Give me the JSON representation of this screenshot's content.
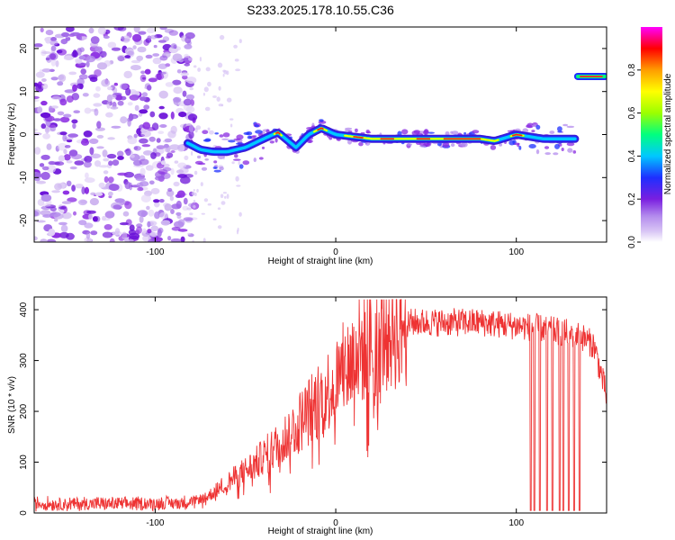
{
  "title": "S233.2025.178.10.55.C36",
  "chart_data": [
    {
      "type": "heatmap",
      "xlabel": "Height of straight line (km)",
      "ylabel": "Frequency (Hz)",
      "xlim": [
        -167,
        150
      ],
      "ylim": [
        -25,
        25
      ],
      "xticks": [
        -100,
        0,
        100
      ],
      "yticks": [
        -20,
        -10,
        0,
        10,
        20
      ],
      "colorbar": {
        "label": "Normalized spectral amplitude",
        "range": [
          0,
          1
        ],
        "ticks": [
          0.0,
          0.2,
          0.4,
          0.6,
          0.8
        ],
        "colormap": [
          "#ffffff",
          "#d9c6f5",
          "#8a2be2",
          "#1e2fff",
          "#00c8ff",
          "#00ff7f",
          "#9bff00",
          "#ffff00",
          "#ff9d00",
          "#ff0000",
          "#ff00ff"
        ]
      },
      "noise_region_x": [
        -167,
        -82
      ],
      "carrier_track": [
        {
          "x": -82,
          "f": -2
        },
        {
          "x": -75,
          "f": -3.5
        },
        {
          "x": -68,
          "f": -4
        },
        {
          "x": -60,
          "f": -4
        },
        {
          "x": -50,
          "f": -3
        },
        {
          "x": -40,
          "f": -1
        },
        {
          "x": -32,
          "f": 0.5
        },
        {
          "x": -22,
          "f": -3
        },
        {
          "x": -15,
          "f": 0
        },
        {
          "x": -8,
          "f": 1.5
        },
        {
          "x": 0,
          "f": 0
        },
        {
          "x": 20,
          "f": -1
        },
        {
          "x": 50,
          "f": -1
        },
        {
          "x": 80,
          "f": -1
        },
        {
          "x": 88,
          "f": -1.5
        },
        {
          "x": 100,
          "f": 0
        },
        {
          "x": 115,
          "f": -1
        },
        {
          "x": 133,
          "f": -1
        }
      ],
      "side_track": {
        "x": [
          134,
          149
        ],
        "f": 13.5
      }
    },
    {
      "type": "line",
      "xlabel": "Height of straight line (km)",
      "ylabel": "SNR (10 * v/v)",
      "xlim": [
        -167,
        150
      ],
      "ylim": [
        0,
        425
      ],
      "xticks": [
        -100,
        0,
        100
      ],
      "yticks": [
        0,
        100,
        200,
        300,
        400
      ],
      "line_color": "#ee3333",
      "series": [
        {
          "values_profile": [
            {
              "x": -167,
              "y": 18
            },
            {
              "x": -110,
              "y": 18
            },
            {
              "x": -85,
              "y": 20
            },
            {
              "x": -72,
              "y": 30
            },
            {
              "x": -60,
              "y": 60
            },
            {
              "x": -45,
              "y": 95
            },
            {
              "x": -30,
              "y": 140
            },
            {
              "x": -15,
              "y": 200
            },
            {
              "x": 0,
              "y": 260
            },
            {
              "x": 12,
              "y": 315
            },
            {
              "x": 25,
              "y": 355
            },
            {
              "x": 40,
              "y": 375
            },
            {
              "x": 80,
              "y": 375
            },
            {
              "x": 110,
              "y": 365
            },
            {
              "x": 135,
              "y": 350
            },
            {
              "x": 143,
              "y": 330
            },
            {
              "x": 150,
              "y": 230
            }
          ],
          "dropouts": [
            108,
            110,
            113,
            117,
            120,
            124,
            126,
            129,
            132,
            135
          ]
        }
      ]
    }
  ]
}
